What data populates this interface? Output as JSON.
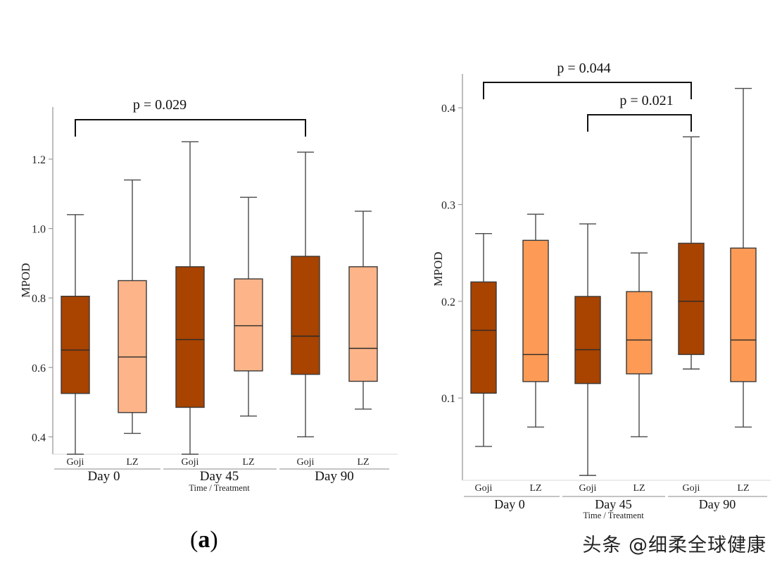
{
  "panel_label": {
    "open": "(",
    "letter": "a",
    "close": ")"
  },
  "watermark": "头条 @细柔全球健康",
  "colors": {
    "goji": "#a84300",
    "lz_left": "#fdb488",
    "lz_right": "#fd9a55",
    "line": "#4a4a4a",
    "axis": "#9a9a9a"
  },
  "chart_data": [
    {
      "type": "boxplot",
      "name": "left",
      "ylabel": "MPOD",
      "xlabel": "Time / Treatment",
      "ylim": [
        0.35,
        1.35
      ],
      "yticks": [
        0.4,
        0.6,
        0.8,
        1.0,
        1.2
      ],
      "yticklabels": [
        "0.4",
        "0.6",
        "0.8",
        "1.0",
        "1.2"
      ],
      "groups": [
        "Day 0",
        "Day 45",
        "Day 90"
      ],
      "treatments": [
        "Goji",
        "LZ"
      ],
      "boxes": [
        {
          "group": "Day 0",
          "treatment": "Goji",
          "min": 0.35,
          "q1": 0.525,
          "median": 0.65,
          "q3": 0.805,
          "max": 1.04
        },
        {
          "group": "Day 0",
          "treatment": "LZ",
          "min": 0.41,
          "q1": 0.47,
          "median": 0.63,
          "q3": 0.85,
          "max": 1.14
        },
        {
          "group": "Day 45",
          "treatment": "Goji",
          "min": 0.35,
          "q1": 0.485,
          "median": 0.68,
          "q3": 0.89,
          "max": 1.25
        },
        {
          "group": "Day 45",
          "treatment": "LZ",
          "min": 0.46,
          "q1": 0.59,
          "median": 0.72,
          "q3": 0.855,
          "max": 1.09
        },
        {
          "group": "Day 90",
          "treatment": "Goji",
          "min": 0.4,
          "q1": 0.58,
          "median": 0.69,
          "q3": 0.92,
          "max": 1.22
        },
        {
          "group": "Day 90",
          "treatment": "LZ",
          "min": 0.48,
          "q1": 0.56,
          "median": 0.655,
          "q3": 0.89,
          "max": 1.05
        }
      ],
      "annotations": [
        {
          "text": "p = 0.029",
          "from": 0,
          "to": 4
        }
      ]
    },
    {
      "type": "boxplot",
      "name": "right",
      "ylabel": "MPOD",
      "xlabel": "Time / Treatment",
      "ylim": [
        0.015,
        0.435
      ],
      "yticks": [
        0.1,
        0.2,
        0.3,
        0.4
      ],
      "yticklabels": [
        "0.1",
        "0.2",
        "0.3",
        "0.4"
      ],
      "groups": [
        "Day 0",
        "Day 45",
        "Day 90"
      ],
      "treatments": [
        "Goji",
        "LZ"
      ],
      "boxes": [
        {
          "group": "Day 0",
          "treatment": "Goji",
          "min": 0.05,
          "q1": 0.105,
          "median": 0.17,
          "q3": 0.22,
          "max": 0.27
        },
        {
          "group": "Day 0",
          "treatment": "LZ",
          "min": 0.07,
          "q1": 0.117,
          "median": 0.145,
          "q3": 0.263,
          "max": 0.29
        },
        {
          "group": "Day 45",
          "treatment": "Goji",
          "min": 0.02,
          "q1": 0.115,
          "median": 0.15,
          "q3": 0.205,
          "max": 0.28
        },
        {
          "group": "Day 45",
          "treatment": "LZ",
          "min": 0.06,
          "q1": 0.125,
          "median": 0.16,
          "q3": 0.21,
          "max": 0.25
        },
        {
          "group": "Day 90",
          "treatment": "Goji",
          "min": 0.13,
          "q1": 0.145,
          "median": 0.2,
          "q3": 0.26,
          "max": 0.37
        },
        {
          "group": "Day 90",
          "treatment": "LZ",
          "min": 0.07,
          "q1": 0.117,
          "median": 0.16,
          "q3": 0.255,
          "max": 0.42
        }
      ],
      "annotations": [
        {
          "text": "p = 0.044",
          "from": 0,
          "to": 4
        },
        {
          "text": "p = 0.021",
          "from": 2,
          "to": 4
        }
      ]
    }
  ]
}
